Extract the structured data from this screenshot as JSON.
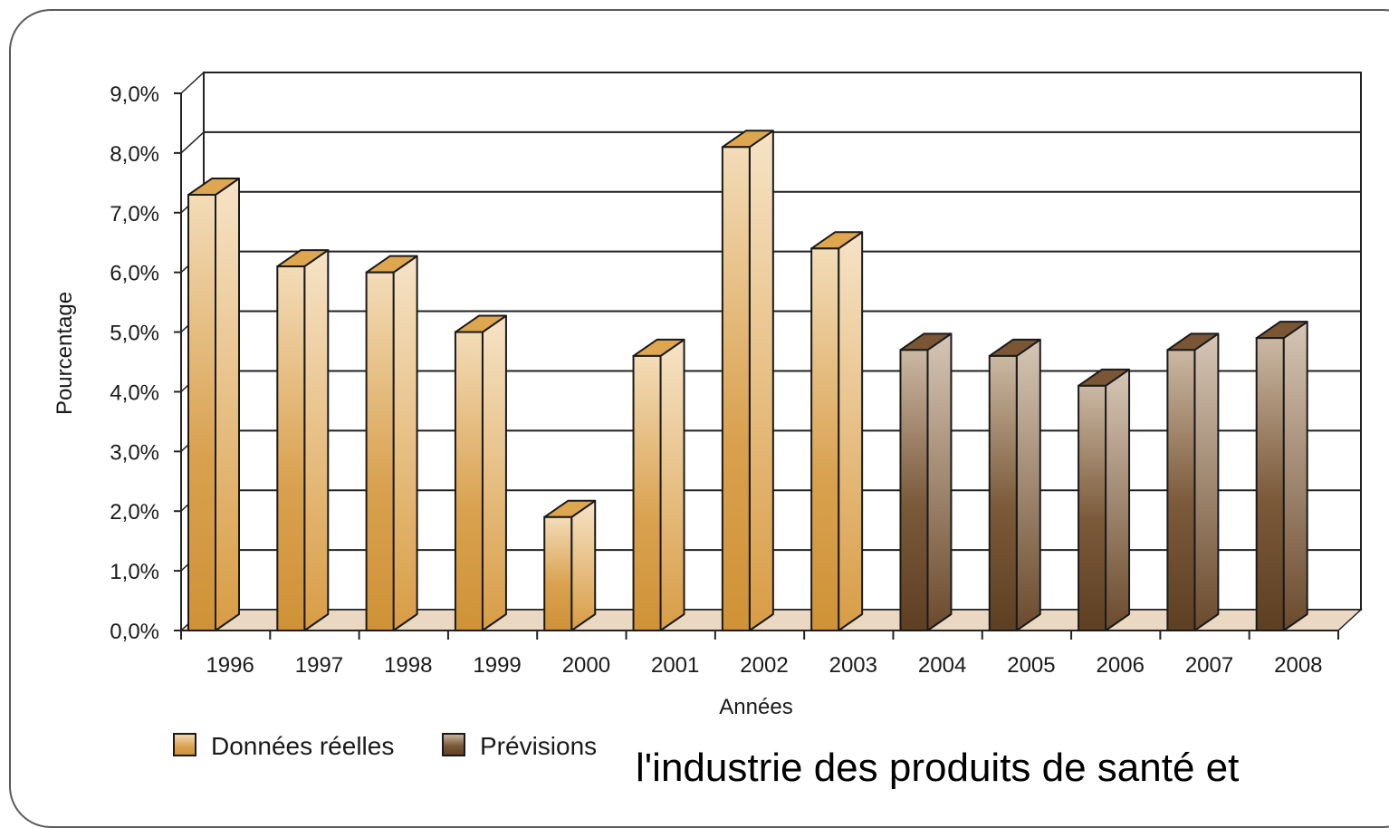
{
  "chart_data": {
    "type": "bar",
    "title": "",
    "xlabel": "Années",
    "ylabel": "Pourcentage",
    "ylim": [
      0,
      9
    ],
    "yticks": [
      0,
      1,
      2,
      3,
      4,
      5,
      6,
      7,
      8,
      9
    ],
    "ytick_labels": [
      "0,0%",
      "1,0%",
      "2,0%",
      "3,0%",
      "4,0%",
      "5,0%",
      "6,0%",
      "7,0%",
      "8,0%",
      "9,0%"
    ],
    "categories": [
      "1996",
      "1997",
      "1998",
      "1999",
      "2000",
      "2001",
      "2002",
      "2003",
      "2004",
      "2005",
      "2006",
      "2007",
      "2008"
    ],
    "series": [
      {
        "name": "Données réelles",
        "color": "#d29a45",
        "values": [
          7.3,
          6.1,
          6.0,
          5.0,
          1.9,
          4.6,
          8.1,
          6.4,
          null,
          null,
          null,
          null,
          null
        ]
      },
      {
        "name": "Prévisions",
        "color": "#6b4a2c",
        "values": [
          null,
          null,
          null,
          null,
          null,
          null,
          null,
          null,
          4.7,
          4.6,
          4.1,
          4.7,
          4.9
        ]
      }
    ],
    "grid": true,
    "legend": "bottom-left",
    "style": "3d"
  },
  "caption_fragment": "l'industrie des produits de santé et"
}
